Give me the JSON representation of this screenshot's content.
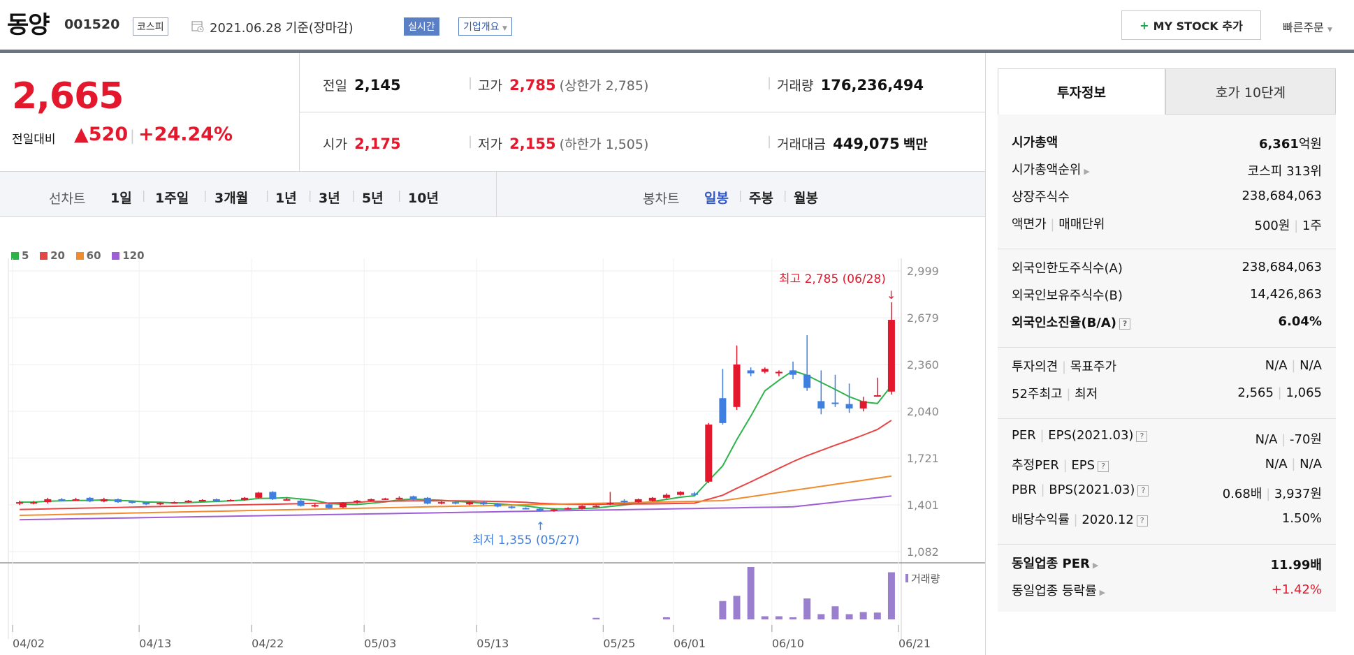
{
  "header": {
    "title": "동양",
    "code": "001520",
    "market_tag": "코스피",
    "date": "2021.06.28 기준(장마감)",
    "live_label": "실시간",
    "corp_label": "기업개요",
    "mystock_label": "MY STOCK 추가",
    "quick_order": "빠른주문"
  },
  "price": {
    "current": "2,665",
    "change_label": "전일대비",
    "change_value": "520",
    "change_pct": "+24.24%"
  },
  "quote": {
    "prev_label": "전일",
    "prev_value": "2,145",
    "high_label": "고가",
    "high_value": "2,785",
    "upper_limit": "(상한가 2,785)",
    "volume_label": "거래량",
    "volume_value": "176,236,494",
    "open_label": "시가",
    "open_value": "2,175",
    "low_label": "저가",
    "low_value": "2,155",
    "lower_limit": "(하한가 1,505)",
    "amount_label": "거래대금",
    "amount_value": "449,075",
    "amount_unit": "백만"
  },
  "periods": {
    "line_label": "선차트",
    "line_items": [
      "1일",
      "1주일",
      "3개월",
      "1년",
      "3년",
      "5년",
      "10년"
    ],
    "candle_label": "봉차트",
    "candle_items": [
      "일봉",
      "주봉",
      "월봉"
    ],
    "active_candle": "일봉"
  },
  "legend": [
    {
      "label": "5",
      "color": "#2db34a"
    },
    {
      "label": "20",
      "color": "#e84545"
    },
    {
      "label": "60",
      "color": "#f08c2e"
    },
    {
      "label": "120",
      "color": "#9d5fd6"
    }
  ],
  "annotations": {
    "max_label": "최고 2,785 (06/28)",
    "min_label": "최저 1,355 (05/27)",
    "volume_label": "거래량"
  },
  "chart_data": {
    "type": "candlestick",
    "y_ticks": [
      "2,999",
      "2,679",
      "2,360",
      "2,040",
      "1,721",
      "1,401",
      "1,082"
    ],
    "ylim": [
      1082,
      2999
    ],
    "x_ticks": [
      "04/02",
      "04/13",
      "04/22",
      "05/03",
      "05/13",
      "05/25",
      "06/01",
      "06/10",
      "06/21"
    ],
    "candles": [
      {
        "o": 1410,
        "c": 1420,
        "h": 1430,
        "l": 1400
      },
      {
        "o": 1415,
        "c": 1420,
        "h": 1428,
        "l": 1405
      },
      {
        "o": 1420,
        "c": 1440,
        "h": 1450,
        "l": 1410
      },
      {
        "o": 1440,
        "c": 1435,
        "h": 1448,
        "l": 1425
      },
      {
        "o": 1435,
        "c": 1440,
        "h": 1450,
        "l": 1430
      },
      {
        "o": 1450,
        "c": 1425,
        "h": 1455,
        "l": 1420
      },
      {
        "o": 1425,
        "c": 1440,
        "h": 1450,
        "l": 1420
      },
      {
        "o": 1440,
        "c": 1420,
        "h": 1445,
        "l": 1415
      },
      {
        "o": 1425,
        "c": 1415,
        "h": 1430,
        "l": 1410
      },
      {
        "o": 1420,
        "c": 1405,
        "h": 1425,
        "l": 1400
      },
      {
        "o": 1405,
        "c": 1415,
        "h": 1420,
        "l": 1400
      },
      {
        "o": 1415,
        "c": 1420,
        "h": 1425,
        "l": 1410
      },
      {
        "o": 1420,
        "c": 1430,
        "h": 1435,
        "l": 1415
      },
      {
        "o": 1430,
        "c": 1435,
        "h": 1440,
        "l": 1425
      },
      {
        "o": 1440,
        "c": 1425,
        "h": 1445,
        "l": 1420
      },
      {
        "o": 1430,
        "c": 1435,
        "h": 1440,
        "l": 1425
      },
      {
        "o": 1435,
        "c": 1450,
        "h": 1455,
        "l": 1430
      },
      {
        "o": 1450,
        "c": 1485,
        "h": 1490,
        "l": 1445
      },
      {
        "o": 1490,
        "c": 1440,
        "h": 1495,
        "l": 1435
      },
      {
        "o": 1440,
        "c": 1440,
        "h": 1450,
        "l": 1430
      },
      {
        "o": 1430,
        "c": 1395,
        "h": 1440,
        "l": 1390
      },
      {
        "o": 1400,
        "c": 1400,
        "h": 1410,
        "l": 1385
      },
      {
        "o": 1405,
        "c": 1380,
        "h": 1410,
        "l": 1375
      },
      {
        "o": 1385,
        "c": 1415,
        "h": 1420,
        "l": 1380
      },
      {
        "o": 1420,
        "c": 1430,
        "h": 1435,
        "l": 1410
      },
      {
        "o": 1430,
        "c": 1440,
        "h": 1445,
        "l": 1425
      },
      {
        "o": 1440,
        "c": 1445,
        "h": 1450,
        "l": 1435
      },
      {
        "o": 1450,
        "c": 1450,
        "h": 1460,
        "l": 1440
      },
      {
        "o": 1460,
        "c": 1440,
        "h": 1465,
        "l": 1430
      },
      {
        "o": 1450,
        "c": 1410,
        "h": 1455,
        "l": 1405
      },
      {
        "o": 1420,
        "c": 1420,
        "h": 1430,
        "l": 1405
      },
      {
        "o": 1420,
        "c": 1410,
        "h": 1425,
        "l": 1405
      },
      {
        "o": 1405,
        "c": 1420,
        "h": 1425,
        "l": 1400
      },
      {
        "o": 1420,
        "c": 1405,
        "h": 1425,
        "l": 1400
      },
      {
        "o": 1410,
        "c": 1390,
        "h": 1415,
        "l": 1385
      },
      {
        "o": 1390,
        "c": 1380,
        "h": 1395,
        "l": 1375
      },
      {
        "o": 1380,
        "c": 1375,
        "h": 1385,
        "l": 1370
      },
      {
        "o": 1375,
        "c": 1360,
        "h": 1380,
        "l": 1355
      },
      {
        "o": 1360,
        "c": 1370,
        "h": 1375,
        "l": 1355
      },
      {
        "o": 1375,
        "c": 1380,
        "h": 1385,
        "l": 1370
      },
      {
        "o": 1375,
        "c": 1395,
        "h": 1400,
        "l": 1370
      },
      {
        "o": 1390,
        "c": 1395,
        "h": 1400,
        "l": 1385
      },
      {
        "o": 1405,
        "c": 1415,
        "h": 1490,
        "l": 1400
      },
      {
        "o": 1430,
        "c": 1420,
        "h": 1440,
        "l": 1415
      },
      {
        "o": 1420,
        "c": 1440,
        "h": 1445,
        "l": 1415
      },
      {
        "o": 1430,
        "c": 1450,
        "h": 1455,
        "l": 1425
      },
      {
        "o": 1450,
        "c": 1470,
        "h": 1480,
        "l": 1445
      },
      {
        "o": 1470,
        "c": 1490,
        "h": 1495,
        "l": 1465
      },
      {
        "o": 1480,
        "c": 1470,
        "h": 1490,
        "l": 1465
      },
      {
        "o": 1560,
        "c": 1950,
        "h": 1960,
        "l": 1550
      },
      {
        "o": 2130,
        "c": 1960,
        "h": 2330,
        "l": 1950
      },
      {
        "o": 2070,
        "c": 2360,
        "h": 2490,
        "l": 2050
      },
      {
        "o": 2320,
        "c": 2300,
        "h": 2340,
        "l": 2280
      },
      {
        "o": 2310,
        "c": 2330,
        "h": 2340,
        "l": 2300
      },
      {
        "o": 2300,
        "c": 2310,
        "h": 2320,
        "l": 2280
      },
      {
        "o": 2320,
        "c": 2290,
        "h": 2380,
        "l": 2260
      },
      {
        "o": 2290,
        "c": 2200,
        "h": 2560,
        "l": 2180
      },
      {
        "o": 2110,
        "c": 2060,
        "h": 2320,
        "l": 2020
      },
      {
        "o": 2100,
        "c": 2090,
        "h": 2290,
        "l": 2070
      },
      {
        "o": 2090,
        "c": 2060,
        "h": 2230,
        "l": 2030
      },
      {
        "o": 2060,
        "c": 2110,
        "h": 2140,
        "l": 2040
      },
      {
        "o": 2150,
        "c": 2150,
        "h": 2270,
        "l": 2140
      },
      {
        "o": 2175,
        "c": 2665,
        "h": 2785,
        "l": 2155
      }
    ],
    "volume": [
      0,
      0,
      0,
      0,
      0,
      0,
      0,
      0,
      0,
      0,
      0,
      0,
      0,
      0,
      0,
      0,
      0,
      0,
      0,
      0,
      0,
      0,
      0,
      0,
      0,
      0,
      0,
      0,
      0,
      0,
      0,
      0,
      0,
      0,
      0,
      0,
      0,
      0,
      0,
      0,
      0,
      3,
      0,
      0,
      0,
      0,
      4,
      0,
      0,
      0,
      35,
      45,
      100,
      6,
      6,
      4,
      40,
      10,
      25,
      10,
      14,
      13,
      90
    ]
  },
  "invest": {
    "tab_active": "투자정보",
    "tab_other": "호가 10단계",
    "rows1": [
      {
        "label": "시가총액",
        "value": "6,361",
        "unit": "억원",
        "bold": true
      },
      {
        "label": "시가총액순위",
        "value": "코스피 313위",
        "arrow": true
      },
      {
        "label": "상장주식수",
        "value": "238,684,063"
      },
      {
        "label": "액면가",
        "label2": "매매단위",
        "value": "500원",
        "value2": "1주"
      }
    ],
    "rows2": [
      {
        "label": "외국인한도주식수(A)",
        "value": "238,684,063"
      },
      {
        "label": "외국인보유주식수(B)",
        "value": "14,426,863"
      },
      {
        "label": "외국인소진율(B/A)",
        "value": "6.04%",
        "bold": true,
        "q": true
      }
    ],
    "rows3": [
      {
        "label": "투자의견",
        "label2": "목표주가",
        "value": "N/A",
        "value2": "N/A"
      },
      {
        "label": "52주최고",
        "label2": "최저",
        "value": "2,565",
        "value2": "1,065"
      }
    ],
    "rows4": [
      {
        "label": "PER",
        "label2": "EPS(2021.03)",
        "value": "N/A",
        "value2": "-70원",
        "q": true
      },
      {
        "label": "추정PER",
        "label2": "EPS",
        "value": "N/A",
        "value2": "N/A",
        "q": true
      },
      {
        "label": "PBR",
        "label2": "BPS(2021.03)",
        "value": "0.68배",
        "value2": "3,937원",
        "q": true
      },
      {
        "label": "배당수익률",
        "label2": "2020.12",
        "value": "1.50%",
        "q": true
      }
    ],
    "rows5": [
      {
        "label": "동일업종 PER",
        "value": "11.99배",
        "bold": true,
        "arrow": true
      },
      {
        "label": "동일업종 등락률",
        "value": "+1.42%",
        "red": true,
        "arrow": true
      }
    ]
  }
}
